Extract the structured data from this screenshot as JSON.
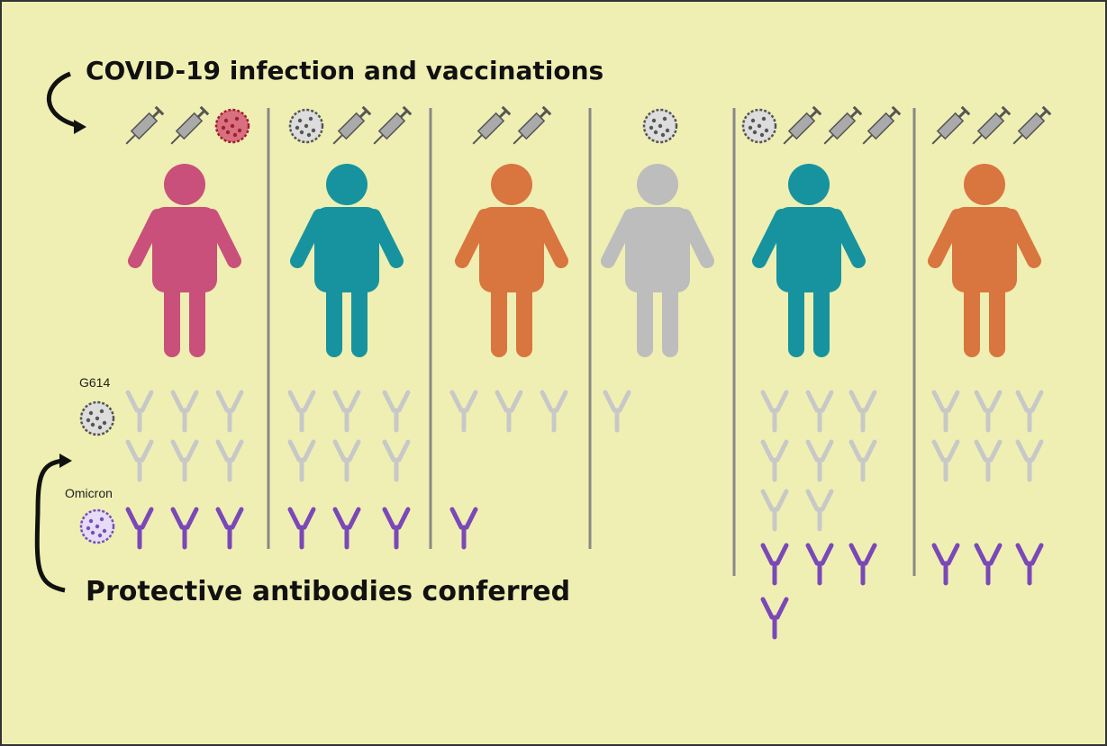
{
  "header": {
    "title": "COVID-19 infection and vaccinations"
  },
  "footer": {
    "title": "Protective antibodies conferred"
  },
  "legend": {
    "g614": "G614",
    "omicron": "Omicron"
  }
}
